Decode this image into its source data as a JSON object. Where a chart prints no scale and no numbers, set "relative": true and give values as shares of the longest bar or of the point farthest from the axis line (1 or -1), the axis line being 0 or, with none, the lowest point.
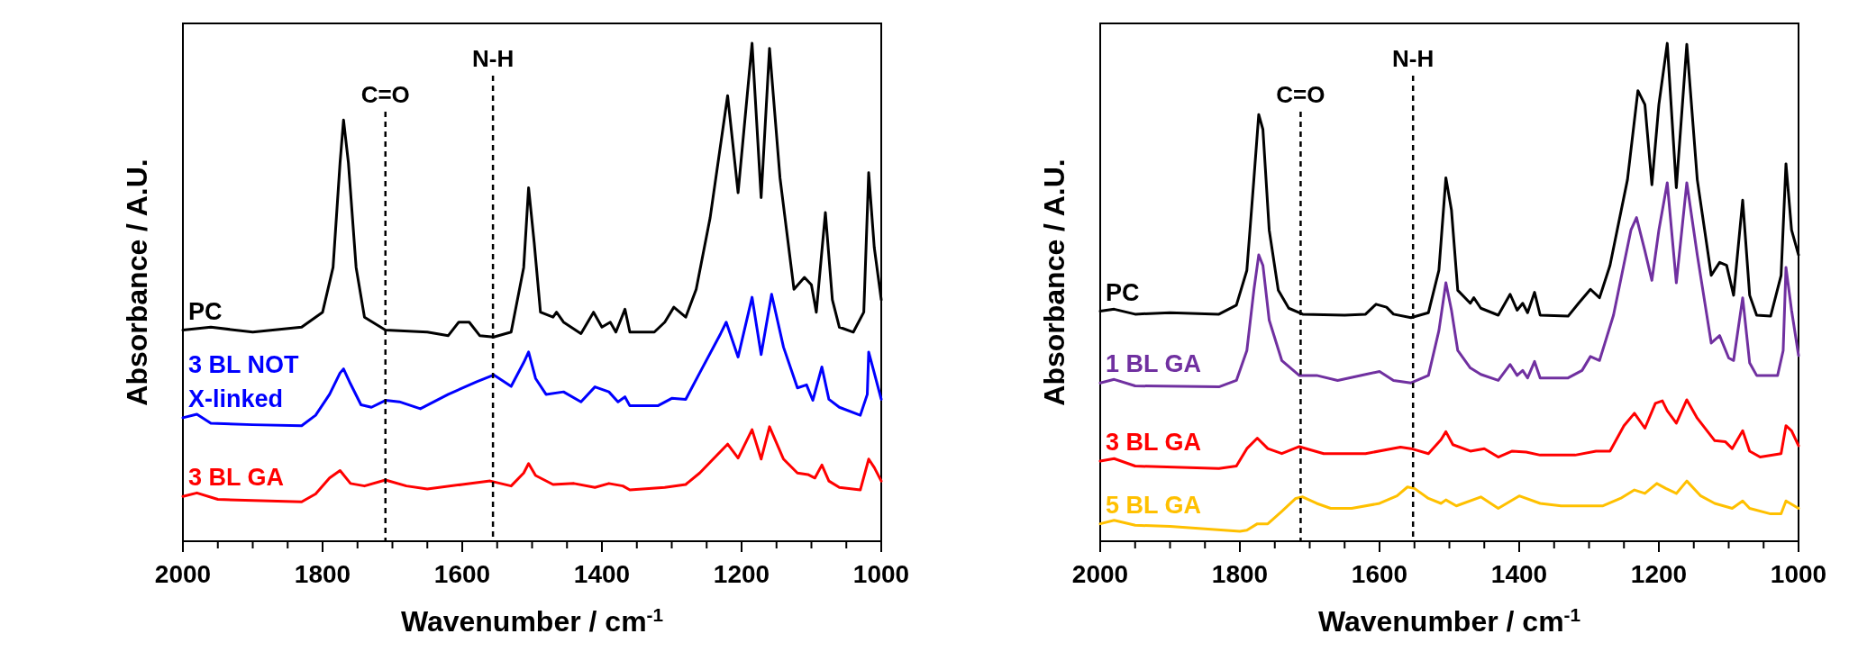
{
  "chart_data": [
    {
      "type": "line",
      "xlabel": "Wavenumber / cm$^{-1}$",
      "ylabel": "Absorbance / A.U.",
      "relative": true,
      "legend": false,
      "xlim": [
        2000,
        1000
      ],
      "xticks": [
        2000,
        {
          "value": 1950,
          "label": null
        },
        {
          "value": 1900,
          "label": null
        },
        {
          "value": 1850,
          "label": null
        },
        1800,
        {
          "value": 1750,
          "label": null
        },
        {
          "value": 1700,
          "label": null
        },
        {
          "value": 1650,
          "label": null
        },
        1600,
        {
          "value": 1550,
          "label": null
        },
        {
          "value": 1500,
          "label": null
        },
        {
          "value": 1450,
          "label": null
        },
        1400,
        {
          "value": 1350,
          "label": null
        },
        {
          "value": 1300,
          "label": null
        },
        {
          "value": 1250,
          "label": null
        },
        1200,
        {
          "value": 1150,
          "label": null
        },
        {
          "value": 1100,
          "label": null
        },
        {
          "value": 1050,
          "label": null
        },
        1000
      ],
      "ref_lines": [
        {
          "axis": "x",
          "value": 1710,
          "label": "C=O",
          "color": "#000000",
          "line_style": "dashed"
        },
        {
          "axis": "x",
          "value": 1556,
          "label": "N-H",
          "color": "#000000",
          "line_style": "dashed"
        }
      ],
      "series": [
        {
          "name": "PC",
          "color": "#000000",
          "x": [
            2000,
            1960,
            1900,
            1830,
            1800,
            1785,
            1775,
            1770,
            1763,
            1752,
            1740,
            1710,
            1650,
            1620,
            1605,
            1590,
            1575,
            1555,
            1530,
            1512,
            1505,
            1497,
            1488,
            1470,
            1465,
            1455,
            1430,
            1412,
            1400,
            1388,
            1380,
            1367,
            1360,
            1325,
            1310,
            1297,
            1280,
            1265,
            1245,
            1220,
            1205,
            1185,
            1172,
            1160,
            1145,
            1125,
            1110,
            1100,
            1093,
            1080,
            1070,
            1060,
            1040,
            1025,
            1018,
            1010,
            1000
          ],
          "values": [
            0.424,
            0.43,
            0.42,
            0.43,
            0.46,
            0.55,
            0.76,
            0.846,
            0.76,
            0.55,
            0.45,
            0.424,
            0.42,
            0.413,
            0.44,
            0.44,
            0.413,
            0.41,
            0.42,
            0.55,
            0.71,
            0.6,
            0.46,
            0.45,
            0.46,
            0.44,
            0.417,
            0.46,
            0.43,
            0.44,
            0.42,
            0.466,
            0.42,
            0.42,
            0.44,
            0.47,
            0.45,
            0.506,
            0.65,
            0.895,
            0.7,
            1.0,
            0.69,
            0.99,
            0.73,
            0.506,
            0.53,
            0.515,
            0.46,
            0.66,
            0.485,
            0.43,
            0.42,
            0.46,
            0.74,
            0.59,
            0.485
          ]
        },
        {
          "name": "3 BL NOT X-linked",
          "color": "#0000ff",
          "x": [
            2000,
            1980,
            1960,
            1900,
            1830,
            1810,
            1790,
            1775,
            1770,
            1760,
            1745,
            1730,
            1710,
            1690,
            1660,
            1620,
            1580,
            1555,
            1530,
            1512,
            1505,
            1495,
            1480,
            1455,
            1430,
            1410,
            1390,
            1377,
            1367,
            1360,
            1320,
            1300,
            1280,
            1260,
            1230,
            1222,
            1205,
            1185,
            1172,
            1157,
            1140,
            1120,
            1107,
            1098,
            1085,
            1075,
            1060,
            1030,
            1020,
            1018,
            1010,
            1000
          ],
          "values": [
            0.248,
            0.255,
            0.237,
            0.234,
            0.232,
            0.253,
            0.295,
            0.338,
            0.346,
            0.316,
            0.274,
            0.269,
            0.283,
            0.28,
            0.266,
            0.295,
            0.32,
            0.334,
            0.311,
            0.359,
            0.38,
            0.327,
            0.295,
            0.3,
            0.28,
            0.31,
            0.3,
            0.28,
            0.29,
            0.272,
            0.272,
            0.287,
            0.285,
            0.338,
            0.417,
            0.44,
            0.37,
            0.49,
            0.375,
            0.496,
            0.39,
            0.308,
            0.314,
            0.283,
            0.35,
            0.285,
            0.269,
            0.253,
            0.295,
            0.38,
            0.338,
            0.285
          ]
        },
        {
          "name": "3 BL GA",
          "color": "#ff0000",
          "x": [
            2000,
            1980,
            1950,
            1830,
            1810,
            1790,
            1775,
            1760,
            1740,
            1710,
            1680,
            1650,
            1600,
            1560,
            1530,
            1512,
            1505,
            1495,
            1470,
            1440,
            1410,
            1390,
            1370,
            1360,
            1310,
            1280,
            1260,
            1220,
            1205,
            1185,
            1172,
            1160,
            1140,
            1120,
            1105,
            1095,
            1085,
            1075,
            1060,
            1030,
            1018,
            1010,
            1000
          ],
          "values": [
            0.09,
            0.097,
            0.084,
            0.079,
            0.095,
            0.127,
            0.142,
            0.116,
            0.111,
            0.123,
            0.111,
            0.105,
            0.114,
            0.121,
            0.111,
            0.137,
            0.156,
            0.132,
            0.114,
            0.116,
            0.108,
            0.116,
            0.111,
            0.103,
            0.108,
            0.114,
            0.137,
            0.195,
            0.167,
            0.224,
            0.165,
            0.23,
            0.165,
            0.137,
            0.134,
            0.127,
            0.153,
            0.121,
            0.108,
            0.103,
            0.165,
            0.148,
            0.121
          ]
        }
      ]
    },
    {
      "type": "line",
      "xlabel": "Wavenumber / cm$^{-1}$",
      "ylabel": "Absorbance / A.U.",
      "relative": true,
      "legend": false,
      "xlim": [
        2000,
        1000
      ],
      "xticks": [
        2000,
        {
          "value": 1950,
          "label": null
        },
        {
          "value": 1900,
          "label": null
        },
        {
          "value": 1850,
          "label": null
        },
        1800,
        {
          "value": 1750,
          "label": null
        },
        {
          "value": 1700,
          "label": null
        },
        {
          "value": 1650,
          "label": null
        },
        1600,
        {
          "value": 1550,
          "label": null
        },
        {
          "value": 1500,
          "label": null
        },
        {
          "value": 1450,
          "label": null
        },
        1400,
        {
          "value": 1350,
          "label": null
        },
        {
          "value": 1300,
          "label": null
        },
        {
          "value": 1250,
          "label": null
        },
        1200,
        {
          "value": 1150,
          "label": null
        },
        {
          "value": 1100,
          "label": null
        },
        {
          "value": 1050,
          "label": null
        },
        1000
      ],
      "ref_lines": [
        {
          "axis": "x",
          "value": 1713,
          "label": "C=O",
          "color": "#000000",
          "line_style": "dashed"
        },
        {
          "axis": "x",
          "value": 1552,
          "label": "N-H",
          "color": "#000000",
          "line_style": "dashed"
        }
      ],
      "series": [
        {
          "name": "PC",
          "color": "#000000",
          "x": [
            2000,
            1980,
            1950,
            1900,
            1830,
            1805,
            1790,
            1780,
            1773,
            1767,
            1758,
            1745,
            1730,
            1710,
            1650,
            1620,
            1605,
            1590,
            1580,
            1555,
            1530,
            1515,
            1505,
            1497,
            1488,
            1470,
            1465,
            1455,
            1430,
            1413,
            1403,
            1395,
            1388,
            1378,
            1370,
            1330,
            1315,
            1298,
            1285,
            1270,
            1245,
            1230,
            1220,
            1210,
            1200,
            1188,
            1175,
            1160,
            1145,
            1125,
            1113,
            1103,
            1093,
            1080,
            1070,
            1060,
            1040,
            1025,
            1018,
            1010,
            1000
          ],
          "values": [
            0.462,
            0.466,
            0.456,
            0.459,
            0.456,
            0.474,
            0.544,
            0.726,
            0.857,
            0.827,
            0.625,
            0.504,
            0.468,
            0.456,
            0.454,
            0.456,
            0.476,
            0.47,
            0.456,
            0.449,
            0.459,
            0.544,
            0.73,
            0.665,
            0.504,
            0.478,
            0.489,
            0.468,
            0.454,
            0.496,
            0.464,
            0.478,
            0.459,
            0.5,
            0.454,
            0.452,
            0.478,
            0.506,
            0.489,
            0.554,
            0.726,
            0.905,
            0.877,
            0.716,
            0.877,
            1.0,
            0.71,
            0.998,
            0.726,
            0.534,
            0.56,
            0.554,
            0.494,
            0.685,
            0.494,
            0.454,
            0.452,
            0.534,
            0.758,
            0.625,
            0.575
          ]
        },
        {
          "name": "1 BL GA",
          "color": "#7030a0",
          "x": [
            2000,
            1980,
            1950,
            1830,
            1805,
            1790,
            1780,
            1773,
            1767,
            1758,
            1740,
            1715,
            1690,
            1660,
            1620,
            1600,
            1580,
            1555,
            1530,
            1515,
            1505,
            1497,
            1488,
            1470,
            1455,
            1430,
            1413,
            1403,
            1395,
            1388,
            1378,
            1370,
            1330,
            1310,
            1298,
            1285,
            1265,
            1240,
            1232,
            1220,
            1210,
            1200,
            1188,
            1175,
            1160,
            1145,
            1125,
            1113,
            1100,
            1093,
            1080,
            1070,
            1060,
            1030,
            1022,
            1018,
            1010,
            1000
          ],
          "values": [
            0.318,
            0.325,
            0.312,
            0.31,
            0.323,
            0.383,
            0.504,
            0.575,
            0.554,
            0.444,
            0.363,
            0.333,
            0.333,
            0.323,
            0.335,
            0.341,
            0.323,
            0.318,
            0.333,
            0.423,
            0.519,
            0.464,
            0.383,
            0.348,
            0.335,
            0.323,
            0.355,
            0.333,
            0.343,
            0.328,
            0.361,
            0.328,
            0.328,
            0.343,
            0.371,
            0.363,
            0.454,
            0.625,
            0.65,
            0.583,
            0.524,
            0.625,
            0.72,
            0.519,
            0.72,
            0.575,
            0.398,
            0.413,
            0.368,
            0.363,
            0.489,
            0.358,
            0.333,
            0.333,
            0.383,
            0.55,
            0.464,
            0.373
          ]
        },
        {
          "name": "3 BL GA",
          "color": "#ff0000",
          "x": [
            2000,
            1980,
            1950,
            1830,
            1805,
            1790,
            1775,
            1760,
            1740,
            1715,
            1680,
            1620,
            1570,
            1555,
            1530,
            1512,
            1505,
            1495,
            1470,
            1450,
            1430,
            1410,
            1390,
            1370,
            1320,
            1290,
            1270,
            1250,
            1235,
            1220,
            1205,
            1195,
            1188,
            1175,
            1160,
            1145,
            1120,
            1105,
            1095,
            1080,
            1070,
            1055,
            1025,
            1018,
            1010,
            1000
          ],
          "values": [
            0.161,
            0.166,
            0.151,
            0.146,
            0.151,
            0.186,
            0.207,
            0.186,
            0.176,
            0.19,
            0.176,
            0.176,
            0.189,
            0.186,
            0.176,
            0.204,
            0.22,
            0.194,
            0.181,
            0.186,
            0.169,
            0.181,
            0.179,
            0.173,
            0.173,
            0.181,
            0.181,
            0.232,
            0.257,
            0.227,
            0.277,
            0.282,
            0.262,
            0.237,
            0.284,
            0.247,
            0.202,
            0.2,
            0.186,
            0.222,
            0.181,
            0.169,
            0.176,
            0.232,
            0.222,
            0.192
          ]
        },
        {
          "name": "5 BL GA",
          "color": "#ffc000",
          "x": [
            2000,
            1980,
            1950,
            1900,
            1850,
            1800,
            1790,
            1775,
            1760,
            1740,
            1720,
            1710,
            1690,
            1670,
            1640,
            1600,
            1575,
            1560,
            1550,
            1530,
            1512,
            1505,
            1490,
            1455,
            1430,
            1400,
            1370,
            1340,
            1280,
            1255,
            1235,
            1220,
            1203,
            1190,
            1175,
            1160,
            1140,
            1120,
            1095,
            1080,
            1070,
            1040,
            1025,
            1018,
            1000
          ],
          "values": [
            0.035,
            0.042,
            0.032,
            0.03,
            0.025,
            0.02,
            0.022,
            0.035,
            0.035,
            0.06,
            0.086,
            0.089,
            0.076,
            0.066,
            0.066,
            0.076,
            0.091,
            0.109,
            0.106,
            0.086,
            0.076,
            0.083,
            0.071,
            0.089,
            0.066,
            0.091,
            0.076,
            0.071,
            0.071,
            0.086,
            0.103,
            0.096,
            0.116,
            0.106,
            0.096,
            0.121,
            0.091,
            0.076,
            0.066,
            0.081,
            0.066,
            0.055,
            0.055,
            0.081,
            0.066
          ]
        }
      ]
    }
  ]
}
